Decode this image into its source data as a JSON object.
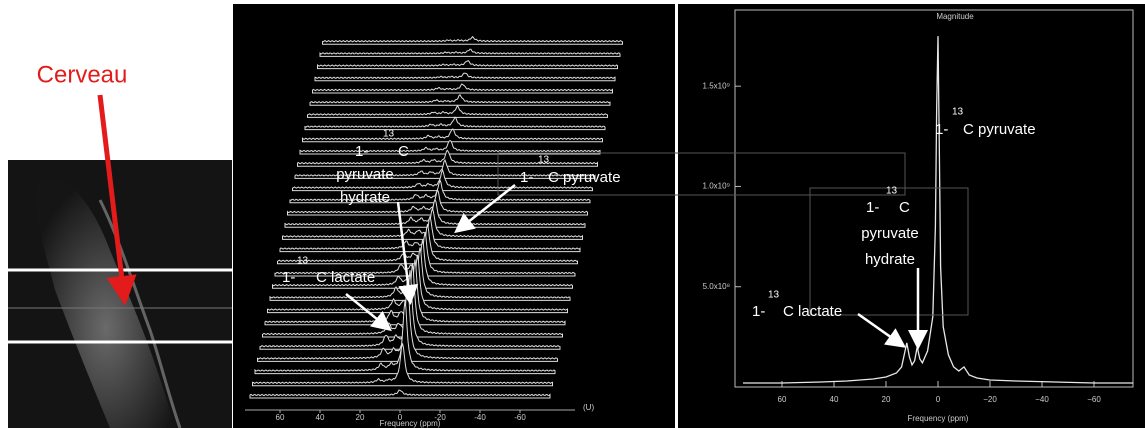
{
  "figure_label": "Cerveau",
  "chart_data": [
    {
      "type": "waterfall",
      "xlabel": "Frequency (ppm)",
      "xunit": "(U)",
      "xlim": [
        75,
        -75
      ],
      "xticks": [
        60,
        40,
        20,
        0,
        -20,
        -40,
        -60
      ],
      "series": [
        {
          "x": 12,
          "values": [
            0,
            3,
            6,
            9,
            10,
            10,
            10,
            9,
            9,
            8,
            8,
            7,
            7,
            6,
            6,
            5,
            5,
            4,
            4,
            3,
            3,
            3,
            2,
            2,
            2,
            2,
            1,
            1,
            1,
            1
          ]
        },
        {
          "x": 7,
          "values": [
            0,
            2,
            5,
            7,
            8,
            8,
            8,
            7,
            7,
            7,
            6,
            6,
            5,
            5,
            5,
            4,
            4,
            3,
            3,
            3,
            2,
            2,
            2,
            2,
            1,
            1,
            1,
            1,
            1,
            1
          ]
        },
        {
          "x": 0,
          "values": [
            5,
            40,
            70,
            80,
            75,
            70,
            62,
            55,
            50,
            45,
            40,
            36,
            32,
            28,
            25,
            22,
            19,
            17,
            15,
            13,
            11,
            10,
            9,
            8,
            7,
            6,
            5,
            5,
            4,
            4
          ]
        }
      ],
      "annotations": [
        {
          "prefix": "1-",
          "sup": "13",
          "lines": [
            "C",
            "pyruvate",
            "hydrate"
          ]
        },
        {
          "prefix": "1-",
          "sup": "13",
          "lines": [
            "C pyruvate"
          ]
        },
        {
          "prefix": "1-",
          "sup": "13",
          "lines": [
            "C lactate"
          ]
        }
      ]
    },
    {
      "type": "line",
      "title": "Magnitude",
      "xlabel": "Frequency (ppm)",
      "xlim": [
        80,
        -75
      ],
      "ylim": [
        0,
        1850000000
      ],
      "xticks": [
        60,
        40,
        20,
        0,
        {
          "value": -20,
          "label": "−20"
        },
        {
          "value": -40,
          "label": "−40"
        },
        {
          "value": -60,
          "label": "−60"
        }
      ],
      "yticks": [
        {
          "value": 500000000,
          "label": "5.0x10⁸"
        },
        {
          "value": 1000000000,
          "label": "1.0x10⁹"
        },
        {
          "value": 1500000000,
          "label": "1.5x10⁹"
        }
      ],
      "color": "#e8e8e8",
      "x": [
        75,
        60,
        45,
        35,
        25,
        20,
        16,
        14,
        12,
        11,
        10,
        9,
        8,
        7,
        6,
        4,
        2,
        1,
        0.5,
        0,
        -0.5,
        -1,
        -2,
        -4,
        -6,
        -8,
        -10,
        -12,
        -15,
        -20,
        -30,
        -45,
        -60,
        -75
      ],
      "values": [
        20000000,
        20000000,
        25000000,
        30000000,
        40000000,
        50000000,
        70000000,
        100000000,
        220000000,
        150000000,
        110000000,
        130000000,
        200000000,
        140000000,
        120000000,
        180000000,
        350000000,
        800000000,
        1400000000,
        1750000000,
        1200000000,
        600000000,
        300000000,
        160000000,
        100000000,
        80000000,
        100000000,
        60000000,
        45000000,
        35000000,
        30000000,
        25000000,
        20000000,
        20000000
      ],
      "annotations": [
        {
          "prefix": "1-",
          "sup": "13",
          "lines": [
            "C pyruvate"
          ]
        },
        {
          "prefix": "1-",
          "sup": "13",
          "lines": [
            "C",
            "pyruvate",
            "hydrate"
          ]
        },
        {
          "prefix": "1-",
          "sup": "13",
          "lines": [
            "C lactate"
          ]
        }
      ]
    }
  ]
}
